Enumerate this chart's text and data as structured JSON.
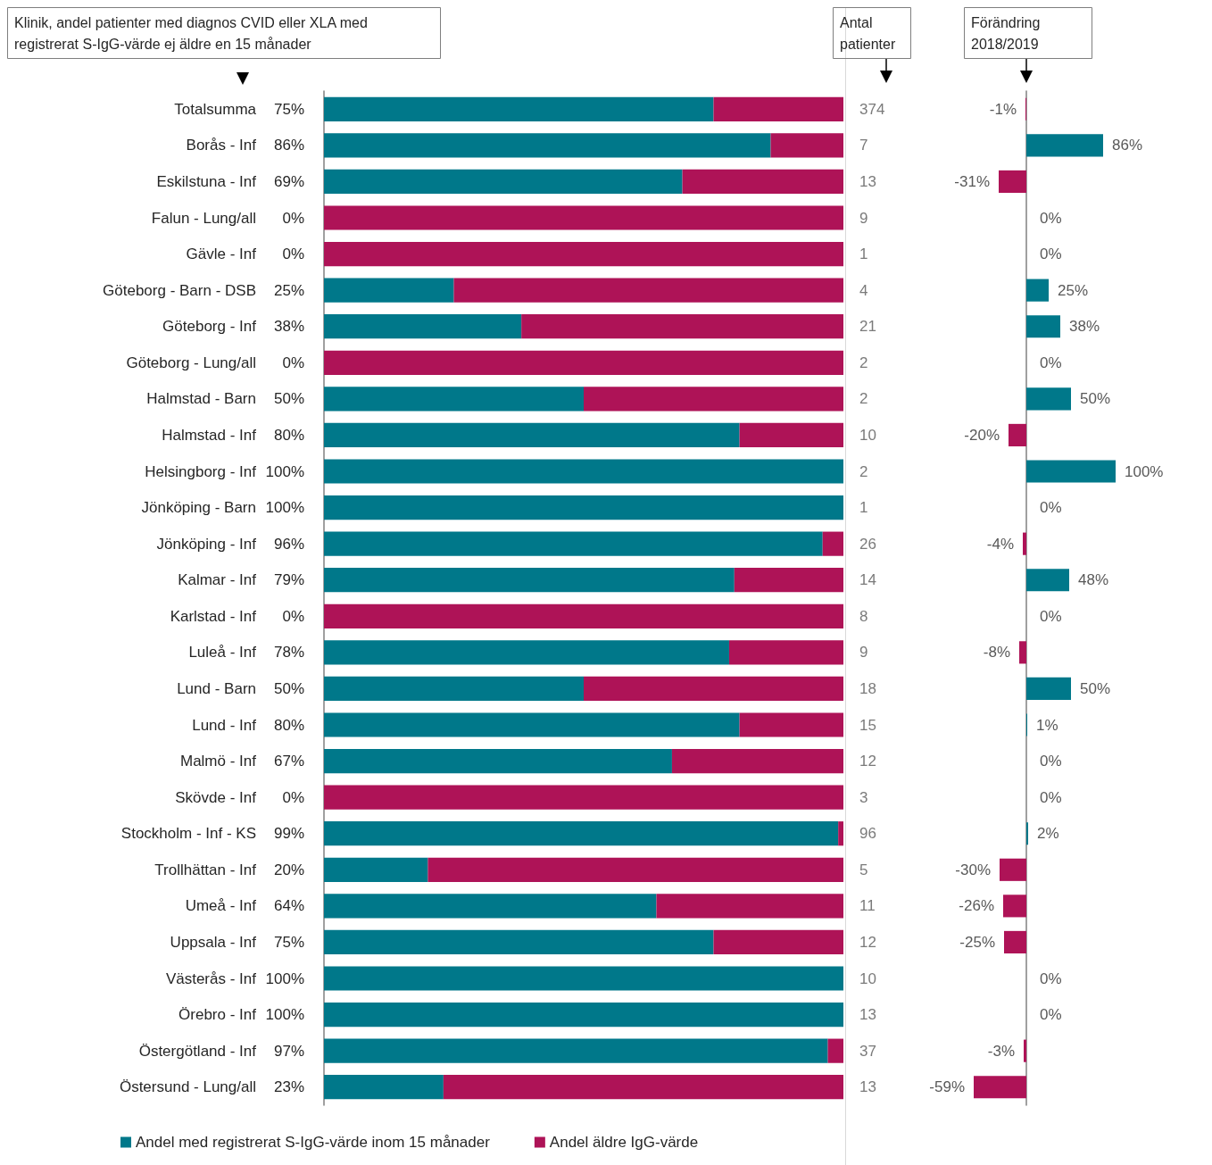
{
  "chart_data": [
    {
      "type": "bar",
      "title": "Klinik, andel patienter med diagnos CVID eller XLA med registrerat S-IgG-värde ej äldre en 15 månader",
      "orientation": "horizontal",
      "stacked": true,
      "legend": "bottom",
      "tick_labels": "y",
      "xlim": [
        0,
        100
      ],
      "categories": [
        "Totalsumma",
        "Borås - Inf",
        "Eskilstuna - Inf",
        "Falun - Lung/all",
        "Gävle - Inf",
        "Göteborg - Barn - DSB",
        "Göteborg - Inf",
        "Göteborg - Lung/all",
        "Halmstad - Barn",
        "Halmstad - Inf",
        "Helsingborg - Inf",
        "Jönköping - Barn",
        "Jönköping - Inf",
        "Kalmar - Inf",
        "Karlstad - Inf",
        "Luleå - Inf",
        "Lund - Barn",
        "Lund - Inf",
        "Malmö - Inf",
        "Skövde - Inf",
        "Stockholm - Inf - KS",
        "Trollhättan - Inf",
        "Umeå - Inf",
        "Uppsala - Inf",
        "Västerås - Inf",
        "Örebro - Inf",
        "Östergötland - Inf",
        "Östersund - Lung/all"
      ],
      "series": [
        {
          "name": "Andel med registrerat S-IgG-värde inom 15 månader",
          "color": "#00788a",
          "values": [
            75,
            86,
            69,
            0,
            0,
            25,
            38,
            0,
            50,
            80,
            100,
            100,
            96,
            79,
            0,
            78,
            50,
            80,
            67,
            0,
            99,
            20,
            64,
            75,
            100,
            100,
            97,
            23
          ],
          "value_labels": [
            "75%",
            "86%",
            "69%",
            "0%",
            "0%",
            "25%",
            "38%",
            "0%",
            "50%",
            "80%",
            "100%",
            "100%",
            "96%",
            "79%",
            "0%",
            "78%",
            "50%",
            "80%",
            "67%",
            "0%",
            "99%",
            "20%",
            "64%",
            "75%",
            "100%",
            "100%",
            "97%",
            "23%"
          ]
        },
        {
          "name": "Andel äldre IgG-värde",
          "color": "#ae1357",
          "values": [
            25,
            14,
            31,
            100,
            100,
            75,
            62,
            100,
            50,
            20,
            0,
            0,
            4,
            21,
            100,
            22,
            50,
            20,
            33,
            100,
            1,
            80,
            36,
            25,
            0,
            0,
            3,
            77
          ]
        }
      ]
    },
    {
      "type": "other",
      "title": "Antal patienter",
      "data_labels": true,
      "values": [
        374,
        7,
        13,
        9,
        1,
        4,
        21,
        2,
        2,
        10,
        2,
        1,
        26,
        14,
        8,
        9,
        18,
        15,
        12,
        3,
        96,
        5,
        11,
        12,
        10,
        13,
        37,
        13
      ]
    },
    {
      "type": "bar",
      "title": "Förändring 2018/2019",
      "orientation": "horizontal",
      "tick_labels": false,
      "categories": [
        null,
        null,
        null,
        null,
        null,
        null,
        null,
        null,
        null,
        null,
        null,
        null,
        null,
        null,
        null,
        null,
        null,
        null,
        null,
        null,
        null,
        null,
        null,
        null,
        null,
        null,
        null,
        null
      ],
      "values": [
        -1,
        86,
        -31,
        0,
        0,
        25,
        38,
        0,
        50,
        -20,
        100,
        0,
        -4,
        48,
        0,
        -8,
        50,
        1,
        0,
        0,
        2,
        -30,
        -26,
        -25,
        0,
        0,
        -3,
        -59
      ],
      "colors": [
        "#ae1357",
        "#00788a",
        "#ae1357",
        "#00788a",
        "#00788a",
        "#00788a",
        "#00788a",
        "#00788a",
        "#00788a",
        "#ae1357",
        "#00788a",
        "#00788a",
        "#ae1357",
        "#00788a",
        "#00788a",
        "#ae1357",
        "#00788a",
        "#00788a",
        "#ae1357",
        "#00788a",
        "#00788a",
        "#ae1357",
        "#ae1357",
        "#ae1357",
        "#00788a",
        "#00788a",
        "#ae1357",
        "#ae1357"
      ],
      "value_labels": [
        "-1%",
        "86%",
        "-31%",
        "0%",
        "0%",
        "25%",
        "38%",
        "0%",
        "50%",
        "-20%",
        "100%",
        "0%",
        "-4%",
        "48%",
        "0%",
        "-8%",
        "50%",
        "1%",
        "0%",
        "0%",
        "2%",
        "-30%",
        "-26%",
        "-25%",
        "0%",
        "0%",
        "-3%",
        "-59%"
      ]
    }
  ]
}
